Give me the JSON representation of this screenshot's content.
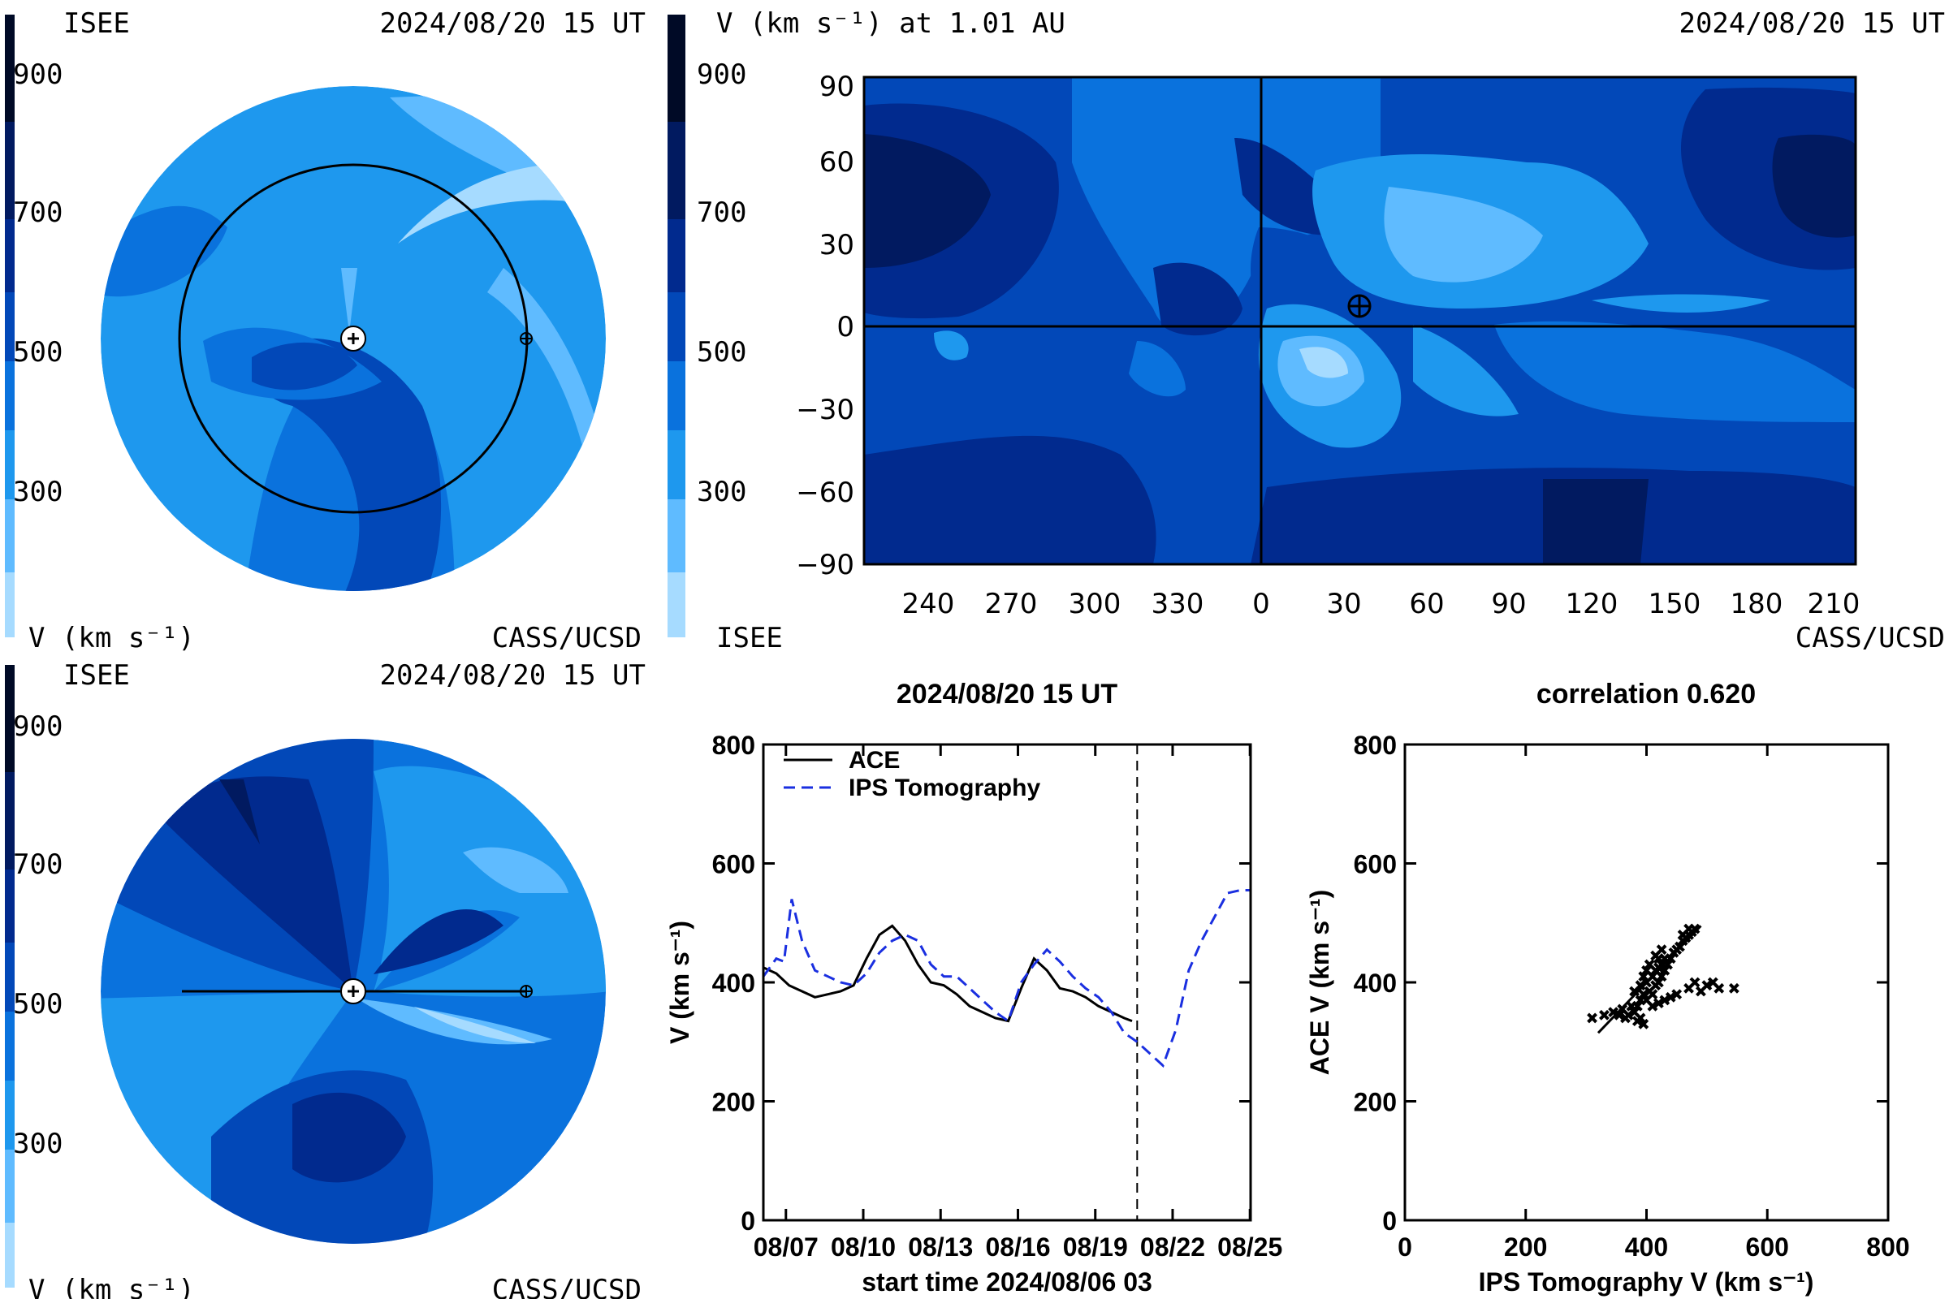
{
  "colors": {
    "c1": "#a6dbff",
    "c2": "#5fbbff",
    "c3": "#1e98ee",
    "c4": "#0a72dd",
    "c5": "#0248b8",
    "c6": "#012a8e",
    "c7": "#011a60",
    "c8": "#000a26",
    "ace": "#000000",
    "ips": "#1a2fe0"
  },
  "panel_tl": {
    "left_label": "ISEE",
    "right_label": "2024/08/20 15 UT",
    "bottom_left": "V (km s⁻¹)",
    "bottom_right": "CASS/UCSD"
  },
  "panel_bl": {
    "left_label": "ISEE",
    "right_label": "2024/08/20 15 UT",
    "bottom_left": "V (km s⁻¹)",
    "bottom_right": "CASS/UCSD"
  },
  "panel_tr": {
    "title": "V (km s⁻¹) at 1.01 AU",
    "right_label": "2024/08/20 15 UT",
    "bottom_left": "ISEE",
    "bottom_right": "CASS/UCSD"
  },
  "colorbar_ticks": [
    "900",
    "700",
    "500",
    "300"
  ],
  "chart_data": [
    {
      "type": "line",
      "title": "2024/08/20 15 UT",
      "xlabel": "start time 2024/08/06 03",
      "ylabel": "V (km s⁻¹)",
      "ylim": [
        0,
        800
      ],
      "yticks": [
        "0",
        "200",
        "400",
        "600",
        "800"
      ],
      "xticks": [
        "08/07",
        "08/10",
        "08/13",
        "08/16",
        "08/19",
        "08/22",
        "08/25"
      ],
      "current_time_day": 14.5,
      "legend": {
        "position": "top-left"
      },
      "series": [
        {
          "name": "ACE",
          "x": [
            0,
            0.5,
            1,
            1.5,
            2,
            2.5,
            3,
            3.5,
            4,
            4.5,
            5,
            5.5,
            6,
            6.5,
            7,
            7.5,
            8,
            8.5,
            9,
            9.5,
            10,
            10.5,
            11,
            11.5,
            12,
            12.5,
            13,
            13.5,
            14,
            14.3
          ],
          "y": [
            425,
            415,
            395,
            385,
            375,
            380,
            385,
            395,
            440,
            480,
            495,
            470,
            430,
            400,
            395,
            380,
            360,
            350,
            340,
            335,
            390,
            440,
            420,
            390,
            385,
            375,
            360,
            350,
            340,
            335
          ]
        },
        {
          "name": "IPS Tomography",
          "x": [
            0,
            0.5,
            0.8,
            1.1,
            1.5,
            2,
            2.5,
            3,
            3.5,
            4,
            4.5,
            5,
            5.5,
            6,
            6.5,
            7,
            7.5,
            8,
            8.5,
            9,
            9.5,
            10,
            10.5,
            11,
            11.5,
            12,
            12.5,
            13,
            13.5,
            14,
            14.5,
            15,
            15.5,
            16,
            16.5,
            17,
            17.5,
            18,
            18.5,
            19
          ],
          "y": [
            410,
            440,
            435,
            540,
            470,
            420,
            410,
            400,
            395,
            415,
            450,
            470,
            480,
            470,
            430,
            410,
            410,
            390,
            370,
            350,
            335,
            400,
            430,
            455,
            435,
            410,
            390,
            375,
            350,
            315,
            300,
            280,
            260,
            320,
            420,
            470,
            510,
            550,
            555,
            555
          ]
        }
      ]
    },
    {
      "type": "scatter",
      "title": "correlation 0.620",
      "xlabel": "IPS Tomography V (km s⁻¹)",
      "ylabel": "ACE V (km s⁻¹)",
      "xlim": [
        0,
        800
      ],
      "ylim": [
        0,
        800
      ],
      "xticks": [
        "0",
        "200",
        "400",
        "600",
        "800"
      ],
      "yticks": [
        "0",
        "200",
        "400",
        "600",
        "800"
      ],
      "fit_line": [
        [
          320,
          315
        ],
        [
          490,
          495
        ]
      ],
      "points": [
        [
          310,
          340
        ],
        [
          330,
          345
        ],
        [
          345,
          350
        ],
        [
          355,
          345
        ],
        [
          360,
          355
        ],
        [
          365,
          340
        ],
        [
          370,
          345
        ],
        [
          375,
          360
        ],
        [
          380,
          350
        ],
        [
          385,
          335
        ],
        [
          390,
          340
        ],
        [
          395,
          330
        ],
        [
          385,
          360
        ],
        [
          390,
          370
        ],
        [
          395,
          380
        ],
        [
          400,
          370
        ],
        [
          405,
          385
        ],
        [
          410,
          380
        ],
        [
          415,
          395
        ],
        [
          400,
          400
        ],
        [
          410,
          410
        ],
        [
          420,
          400
        ],
        [
          425,
          410
        ],
        [
          415,
          420
        ],
        [
          420,
          425
        ],
        [
          430,
          420
        ],
        [
          425,
          430
        ],
        [
          435,
          430
        ],
        [
          440,
          440
        ],
        [
          430,
          440
        ],
        [
          420,
          440
        ],
        [
          445,
          450
        ],
        [
          450,
          455
        ],
        [
          455,
          460
        ],
        [
          460,
          470
        ],
        [
          465,
          475
        ],
        [
          470,
          480
        ],
        [
          475,
          485
        ],
        [
          480,
          490
        ],
        [
          470,
          490
        ],
        [
          460,
          480
        ],
        [
          405,
          430
        ],
        [
          400,
          420
        ],
        [
          395,
          410
        ],
        [
          410,
          360
        ],
        [
          420,
          365
        ],
        [
          430,
          370
        ],
        [
          440,
          375
        ],
        [
          450,
          380
        ],
        [
          470,
          390
        ],
        [
          490,
          385
        ],
        [
          500,
          395
        ],
        [
          520,
          390
        ],
        [
          545,
          390
        ],
        [
          510,
          400
        ],
        [
          480,
          400
        ],
        [
          380,
          385
        ],
        [
          390,
          395
        ],
        [
          415,
          445
        ],
        [
          425,
          455
        ]
      ]
    }
  ]
}
